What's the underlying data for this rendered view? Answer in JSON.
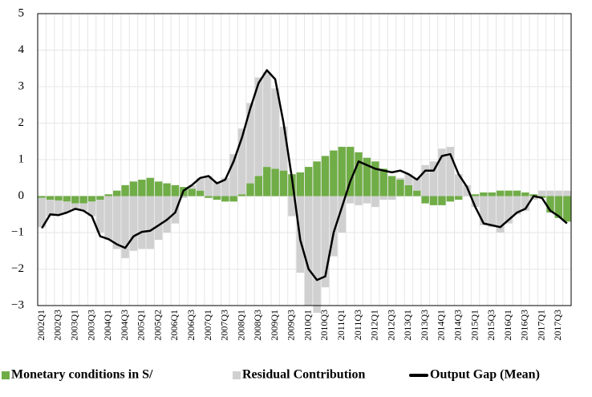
{
  "chart_data": {
    "type": "stacked-bar-line",
    "categories": [
      "2002Q1",
      null,
      "2002Q3",
      null,
      "2003Q1",
      null,
      "2003Q3",
      null,
      "2004Q1",
      null,
      "2004Q3",
      null,
      "2005Q1",
      null,
      "2005Q2",
      null,
      "2006Q1",
      null,
      "2006Q3",
      null,
      "2007Q1",
      null,
      "2007Q3",
      null,
      "2008Q1",
      null,
      "2008Q3",
      null,
      "2009Q1",
      null,
      "2009Q3",
      null,
      "2010Q1",
      null,
      "2010Q3",
      null,
      "2011Q1",
      null,
      "2011Q3",
      null,
      "2012Q1",
      null,
      "2012Q3",
      null,
      "2013Q1",
      null,
      "2013Q3",
      null,
      "2014Q1",
      null,
      "2014Q3",
      null,
      "2015Q1",
      null,
      "2015Q3",
      null,
      "2016Q1",
      null,
      "2016Q3",
      null,
      "2017Q1",
      null,
      "2017Q3",
      null
    ],
    "series": [
      {
        "name": "Monetary conditions in S/",
        "kind": "bar",
        "color": "#70ad47",
        "values": [
          -0.05,
          -0.1,
          -0.12,
          -0.15,
          -0.2,
          -0.2,
          -0.15,
          -0.1,
          0.05,
          0.15,
          0.3,
          0.4,
          0.45,
          0.5,
          0.4,
          0.35,
          0.3,
          0.25,
          0.2,
          0.15,
          -0.05,
          -0.1,
          -0.15,
          -0.15,
          0.05,
          0.35,
          0.55,
          0.8,
          0.75,
          0.7,
          0.6,
          0.65,
          0.8,
          0.95,
          1.1,
          1.25,
          1.35,
          1.35,
          1.2,
          1.05,
          0.95,
          0.75,
          0.55,
          0.45,
          0.3,
          0.15,
          -0.2,
          -0.25,
          -0.25,
          -0.15,
          -0.1,
          0,
          0.05,
          0.1,
          0.1,
          0.15,
          0.15,
          0.15,
          0.1,
          0.05,
          -0.05,
          -0.45,
          -0.6,
          -0.7
        ]
      },
      {
        "name": "Residual Contribution",
        "kind": "bar",
        "color": "#d0d0d0",
        "values": [
          -0.8,
          -0.45,
          -0.4,
          -0.3,
          -0.15,
          -0.2,
          -0.4,
          -0.9,
          -1.2,
          -1.45,
          -1.7,
          -1.5,
          -1.45,
          -1.45,
          -1.2,
          -1.0,
          -0.75,
          -0.05,
          0.1,
          0.35,
          0.55,
          0.4,
          0.5,
          1.15,
          1.8,
          2.2,
          2.7,
          2.6,
          2.2,
          1.2,
          -0.55,
          -2.1,
          -3.0,
          -3.2,
          -2.5,
          -1.65,
          -1.0,
          -0.2,
          -0.25,
          -0.2,
          -0.3,
          -0.1,
          -0.1,
          0.05,
          0.3,
          0.35,
          0.85,
          0.95,
          1.3,
          1.35,
          0.6,
          0.3,
          -0.3,
          -0.8,
          -0.85,
          -1.0,
          -0.75,
          -0.5,
          -0.4,
          -0.1,
          0.15,
          0.15,
          0.15,
          0.15
        ]
      },
      {
        "name": "Output Gap (Mean)",
        "kind": "line",
        "color": "#000000",
        "values": [
          -0.88,
          -0.5,
          -0.52,
          -0.45,
          -0.35,
          -0.4,
          -0.55,
          -1.1,
          -1.18,
          -1.32,
          -1.42,
          -1.1,
          -0.98,
          -0.95,
          -0.8,
          -0.65,
          -0.45,
          0.15,
          0.3,
          0.5,
          0.55,
          0.35,
          0.45,
          0.95,
          1.6,
          2.4,
          3.1,
          3.45,
          3.2,
          2.0,
          0.5,
          -1.2,
          -2.0,
          -2.3,
          -2.2,
          -1.0,
          -0.3,
          0.4,
          0.95,
          0.85,
          0.75,
          0.7,
          0.65,
          0.7,
          0.6,
          0.45,
          0.7,
          0.7,
          1.1,
          1.15,
          0.6,
          0.25,
          -0.3,
          -0.75,
          -0.8,
          -0.85,
          -0.65,
          -0.45,
          -0.35,
          0.0,
          -0.05,
          -0.4,
          -0.55,
          -0.75
        ]
      }
    ],
    "ylim": [
      -3,
      5
    ],
    "yticks": [
      {
        "value": -3,
        "label": "−3"
      },
      {
        "value": -2,
        "label": "−2"
      },
      {
        "value": -1,
        "label": "−1"
      },
      0,
      1,
      2,
      3,
      4,
      5
    ],
    "grid": true
  }
}
